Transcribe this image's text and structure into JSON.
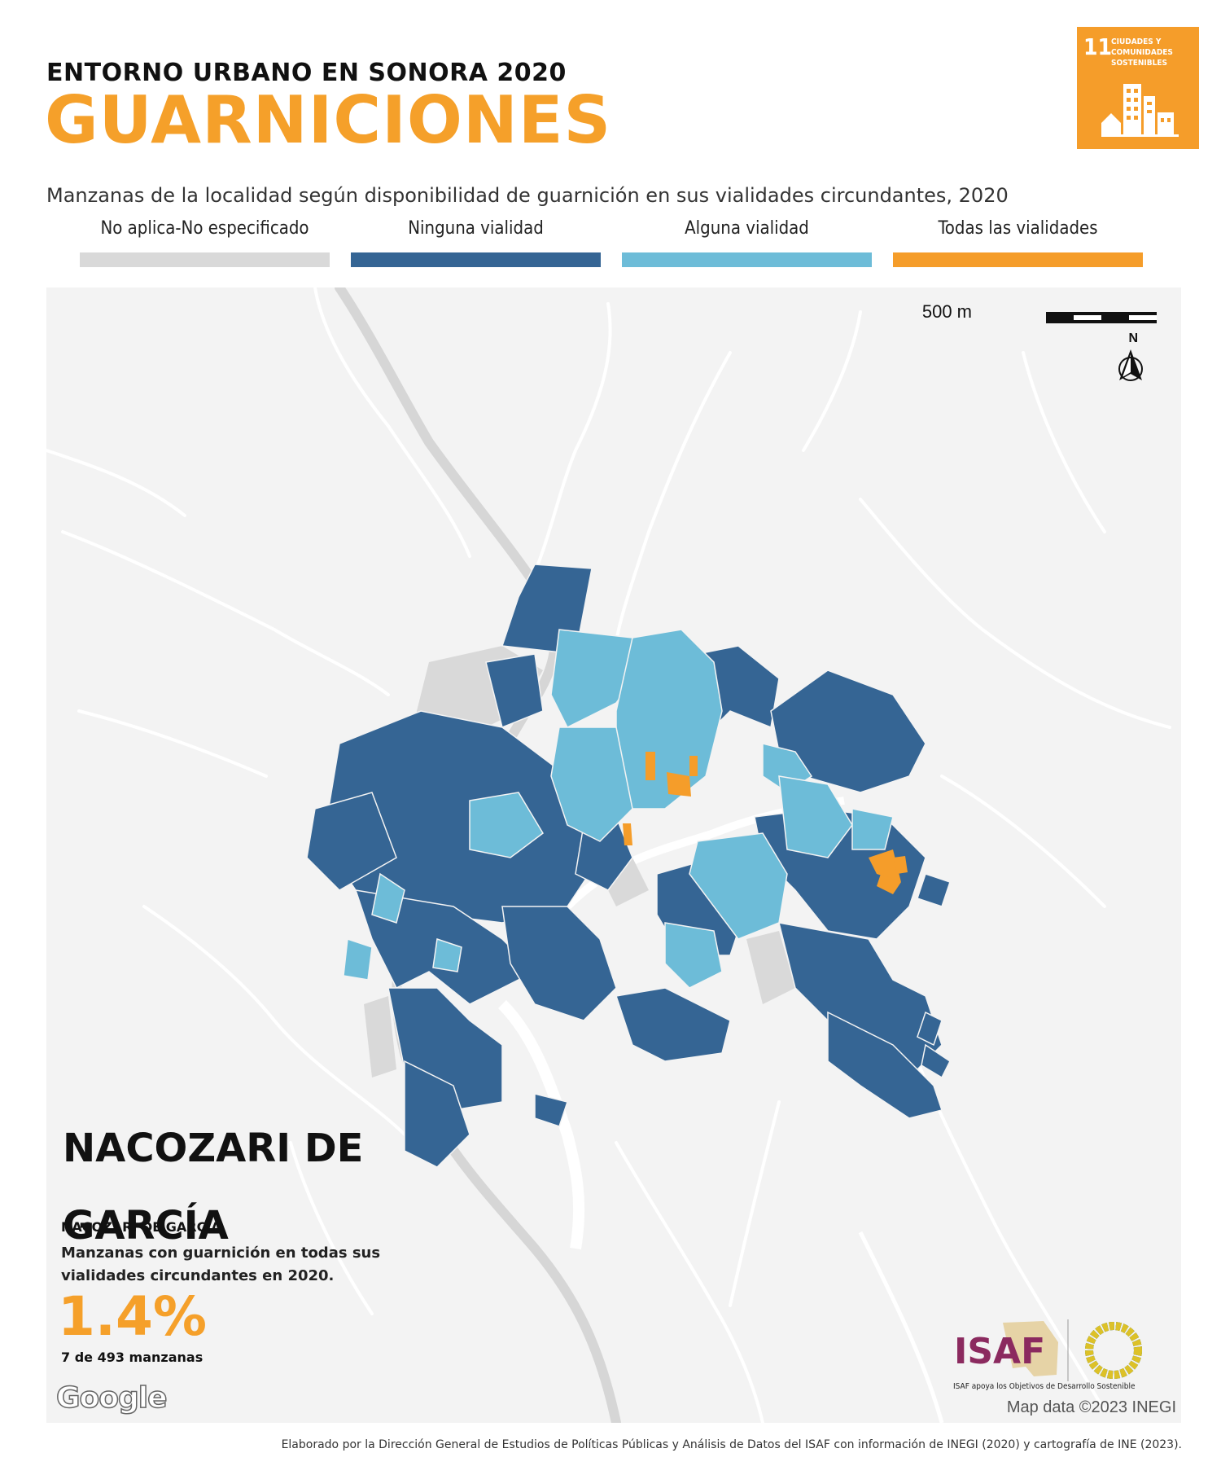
{
  "header": {
    "kicker": "ENTORNO URBANO EN SONORA 2020",
    "title": "GUARNICIONES",
    "subtitle": "Manzanas de la localidad según disponibilidad de guarnición en sus vialidades circundantes, 2020"
  },
  "sdg_badge": {
    "number": "11",
    "label": "CIUDADES Y COMUNIDADES SOSTENIBLES",
    "color": "#f59d2a"
  },
  "legend": [
    {
      "label": "No aplica-No especificado",
      "color": "#d9d9d9"
    },
    {
      "label": "Ninguna vialidad",
      "color": "#356594"
    },
    {
      "label": "Alguna vialidad",
      "color": "#6dbcd8"
    },
    {
      "label": "Todas las vialidades",
      "color": "#f59d2a"
    }
  ],
  "map": {
    "scale_label": "500 m",
    "north_label": "N",
    "basemap_credit": "Map data ©2023 INEGI",
    "provider": "Google"
  },
  "locality": {
    "name": "NACOZARI DE GARCÍA",
    "municipality": "NACOZARI DE GARCÍA",
    "stat_description": "Manzanas con guarnición en todas sus vialidades circundantes en 2020.",
    "stat_value": "1.4%",
    "stat_count": "7 de 493 manzanas"
  },
  "logos": {
    "isaf": "ISAF",
    "isaf_caption": "ISAF apoya los Objetivos de Desarrollo Sostenible"
  },
  "footer": {
    "credit": "Elaborado por la Dirección General de Estudios de Políticas Públicas y Análisis de Datos del ISAF con información de INEGI (2020) y cartografía de INE (2023)."
  }
}
